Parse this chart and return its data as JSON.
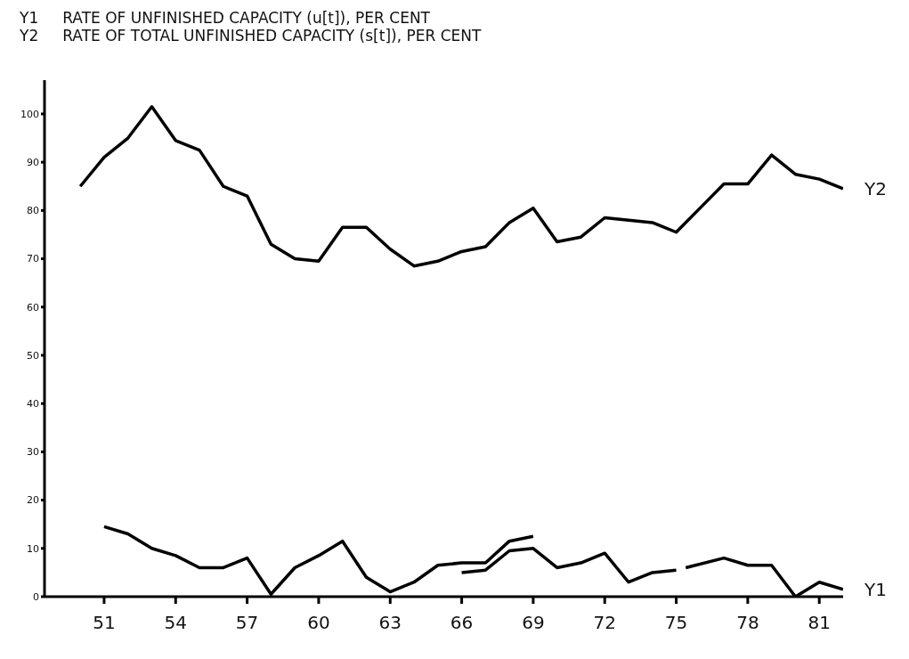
{
  "chart_data": {
    "type": "line",
    "title": "Y1     RATE OF UNFINISHED CAPACITY (u[t]), PER CENT",
    "subtitle": "Y2     RATE OF TOTAL UNFINISHED CAPACITY (s[t]), PER CENT",
    "series": [
      {
        "name": "Y2",
        "color": "#000000",
        "x": [
          50,
          51,
          52,
          53,
          54,
          55,
          56,
          57,
          58,
          59,
          60,
          61,
          62,
          63,
          64,
          65,
          66,
          67,
          68,
          69,
          70,
          71,
          72,
          73,
          74,
          75,
          76,
          77,
          78,
          79,
          80,
          81,
          82
        ],
        "values": [
          85,
          91,
          95,
          101.5,
          94.5,
          92.5,
          85,
          83,
          73,
          70,
          69.5,
          76.5,
          76.5,
          72,
          68.5,
          69.5,
          71.5,
          72.5,
          77.5,
          80.5,
          73.5,
          74.5,
          78.5,
          78,
          77.5,
          75.5,
          80.5,
          85.5,
          85.5,
          91.5,
          87.5,
          86.5,
          84.5
        ]
      },
      {
        "color": "#000000",
        "x": [
          51,
          52,
          53,
          54,
          55,
          56,
          57,
          58,
          59,
          60,
          61,
          62,
          63,
          64,
          65,
          66,
          67,
          68,
          69
        ],
        "values": [
          14.5,
          13,
          10,
          8.5,
          6,
          6,
          8,
          0.5,
          6,
          8.5,
          11.5,
          4,
          1,
          3,
          6.5,
          7,
          7,
          11.5,
          12.5
        ]
      },
      {
        "color": "#000000",
        "x": [
          66,
          67,
          68,
          69,
          70,
          71,
          72,
          73,
          74,
          75
        ],
        "values": [
          5,
          5.5,
          9.5,
          10,
          6,
          7,
          9,
          3,
          5,
          5.5
        ]
      },
      {
        "name": "Y1",
        "color": "#000000",
        "x": [
          75.4,
          77,
          78,
          79,
          80,
          81,
          82
        ],
        "values": [
          6,
          8,
          6.5,
          6.5,
          0,
          3,
          1.5
        ]
      }
    ],
    "xlim": [
      48.5,
      82
    ],
    "xticks": [
      51,
      54,
      57,
      60,
      63,
      66,
      69,
      72,
      75,
      78,
      81
    ],
    "ylim": [
      0,
      107
    ],
    "yticks": [
      0,
      10,
      20,
      30,
      40,
      50,
      60,
      70,
      80,
      90,
      100
    ],
    "grid": false,
    "legend": false,
    "marker": "none",
    "line_style": "solid"
  }
}
